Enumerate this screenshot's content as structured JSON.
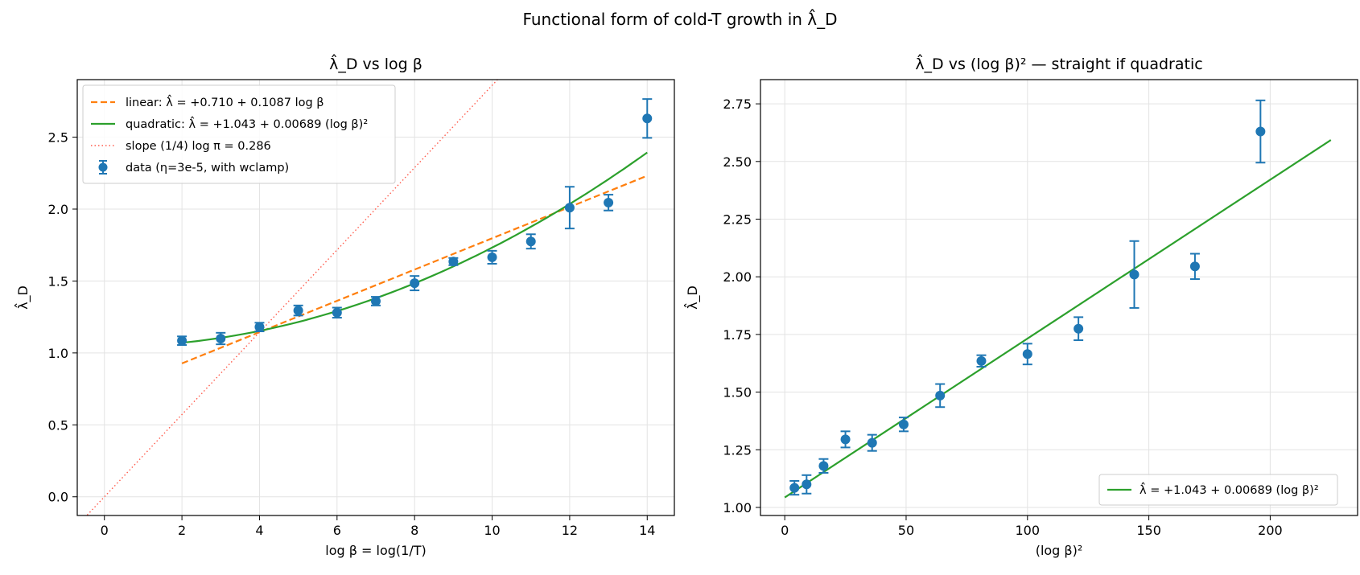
{
  "figure": {
    "suptitle": "Functional form of cold-T growth in λ̂_D"
  },
  "chart_data": [
    {
      "type": "scatter",
      "title": "λ̂_D vs log β",
      "xlabel": "log β = log(1/T)",
      "ylabel": "λ̂_D",
      "xlim": [
        -0.7,
        14.7
      ],
      "ylim": [
        -0.13,
        2.9
      ],
      "xticks": [
        0,
        2,
        4,
        6,
        8,
        10,
        12,
        14
      ],
      "xtick_labels": [
        "0",
        "2",
        "4",
        "6",
        "8",
        "10",
        "12",
        "14"
      ],
      "yticks": [
        0.0,
        0.5,
        1.0,
        1.5,
        2.0,
        2.5
      ],
      "ytick_labels": [
        "0.0",
        "0.5",
        "1.0",
        "1.5",
        "2.0",
        "2.5"
      ],
      "grid": true,
      "legend_position": "top-left",
      "data": {
        "name": "data (η=3e-5, with wclamp)",
        "color": "#1f77b4",
        "x": [
          2,
          3,
          4,
          5,
          6,
          7,
          8,
          9,
          10,
          11,
          12,
          13,
          14
        ],
        "y": [
          1.085,
          1.1,
          1.18,
          1.295,
          1.28,
          1.36,
          1.485,
          1.635,
          1.665,
          1.775,
          2.01,
          2.045,
          2.63
        ],
        "yerr": [
          0.03,
          0.04,
          0.03,
          0.035,
          0.035,
          0.03,
          0.05,
          0.025,
          0.045,
          0.05,
          0.145,
          0.055,
          0.135
        ]
      },
      "fits": [
        {
          "name": "linear:  λ̂ = +0.710 + 0.1087 log β",
          "style": "dashed",
          "color": "#ff7f0e",
          "form": "linear",
          "intercept": 0.71,
          "slope": 0.1087,
          "x_range": [
            2,
            14
          ]
        },
        {
          "name": "quadratic:  λ̂ = +1.043 + 0.00689 (log β)²",
          "style": "solid",
          "color": "#2ca02c",
          "form": "quadratic",
          "intercept": 1.043,
          "coef": 0.00689,
          "x_range": [
            2,
            14
          ]
        },
        {
          "name": "slope (1/4) log π = 0.286",
          "style": "dotted",
          "color": "#ff5c4d",
          "form": "linear",
          "intercept": 0.0,
          "slope": 0.286,
          "x_range": [
            -0.7,
            14.7
          ]
        }
      ]
    },
    {
      "type": "scatter",
      "title": "λ̂_D vs (log β)² — straight if quadratic",
      "xlabel": "(log β)²",
      "ylabel": "λ̂_D",
      "xlim": [
        -10,
        236
      ],
      "ylim": [
        0.965,
        2.855
      ],
      "xticks": [
        0,
        50,
        100,
        150,
        200
      ],
      "xtick_labels": [
        "0",
        "50",
        "100",
        "150",
        "200"
      ],
      "yticks": [
        1.0,
        1.25,
        1.5,
        1.75,
        2.0,
        2.25,
        2.5,
        2.75
      ],
      "ytick_labels": [
        "1.00",
        "1.25",
        "1.50",
        "1.75",
        "2.00",
        "2.25",
        "2.50",
        "2.75"
      ],
      "grid": true,
      "legend_position": "bottom-right",
      "data": {
        "name": "",
        "color": "#1f77b4",
        "x": [
          4,
          9,
          16,
          25,
          36,
          49,
          64,
          81,
          100,
          121,
          144,
          169,
          196
        ],
        "y": [
          1.085,
          1.1,
          1.18,
          1.295,
          1.28,
          1.36,
          1.485,
          1.635,
          1.665,
          1.775,
          2.01,
          2.045,
          2.63
        ],
        "yerr": [
          0.03,
          0.04,
          0.03,
          0.035,
          0.035,
          0.03,
          0.05,
          0.025,
          0.045,
          0.05,
          0.145,
          0.055,
          0.135
        ]
      },
      "fits": [
        {
          "name": "λ̂ = +1.043 + 0.00689 (log β)²",
          "style": "solid",
          "color": "#2ca02c",
          "form": "linear",
          "intercept": 1.043,
          "slope": 0.00689,
          "x_range": [
            0,
            225
          ]
        }
      ]
    }
  ]
}
